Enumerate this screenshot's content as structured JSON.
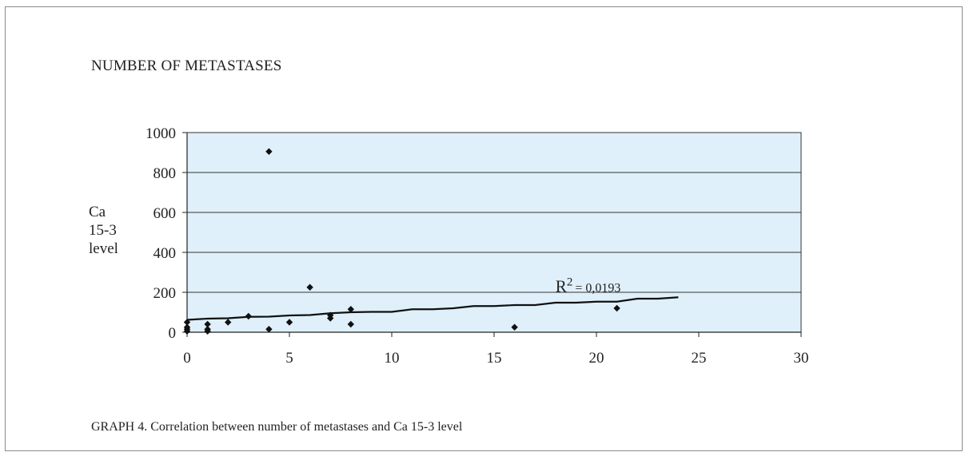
{
  "chart_data": {
    "type": "scatter",
    "title": "NUMBER OF METASTASES",
    "ylabel_lines": [
      "Ca",
      "15-3",
      "level"
    ],
    "caption": "GRAPH 4. Correlation between number of metastases and Ca 15-3 level",
    "xlim": [
      0,
      30
    ],
    "ylim": [
      0,
      1000
    ],
    "x_ticks": [
      0,
      5,
      10,
      15,
      20,
      25,
      30
    ],
    "y_ticks": [
      0,
      200,
      400,
      600,
      800,
      1000
    ],
    "grid": "horizontal",
    "plot_background": "#dff0fa",
    "marker_color": "#111111",
    "points": [
      {
        "x": 0,
        "y": 5
      },
      {
        "x": 0,
        "y": 15
      },
      {
        "x": 0,
        "y": 25
      },
      {
        "x": 0,
        "y": 50
      },
      {
        "x": 1,
        "y": 5
      },
      {
        "x": 1,
        "y": 15
      },
      {
        "x": 1,
        "y": 40
      },
      {
        "x": 2,
        "y": 50
      },
      {
        "x": 3,
        "y": 80
      },
      {
        "x": 4,
        "y": 905
      },
      {
        "x": 4,
        "y": 15
      },
      {
        "x": 5,
        "y": 50
      },
      {
        "x": 6,
        "y": 225
      },
      {
        "x": 7,
        "y": 85
      },
      {
        "x": 7,
        "y": 70
      },
      {
        "x": 8,
        "y": 115
      },
      {
        "x": 8,
        "y": 40
      },
      {
        "x": 16,
        "y": 25
      },
      {
        "x": 21,
        "y": 120
      }
    ],
    "trendline": {
      "x": [
        0,
        1,
        2,
        3,
        4,
        5,
        6,
        7,
        8,
        9,
        10,
        11,
        12,
        13,
        14,
        15,
        16,
        17,
        18,
        19,
        20,
        21,
        22,
        23,
        24
      ],
      "y": [
        62,
        68,
        70,
        77,
        78,
        84,
        86,
        95,
        100,
        102,
        102,
        115,
        115,
        120,
        131,
        131,
        136,
        136,
        148,
        148,
        153,
        153,
        168,
        168,
        175
      ],
      "label_base": "R",
      "label_sup": "2",
      "label_value": "= 0,0193"
    }
  }
}
